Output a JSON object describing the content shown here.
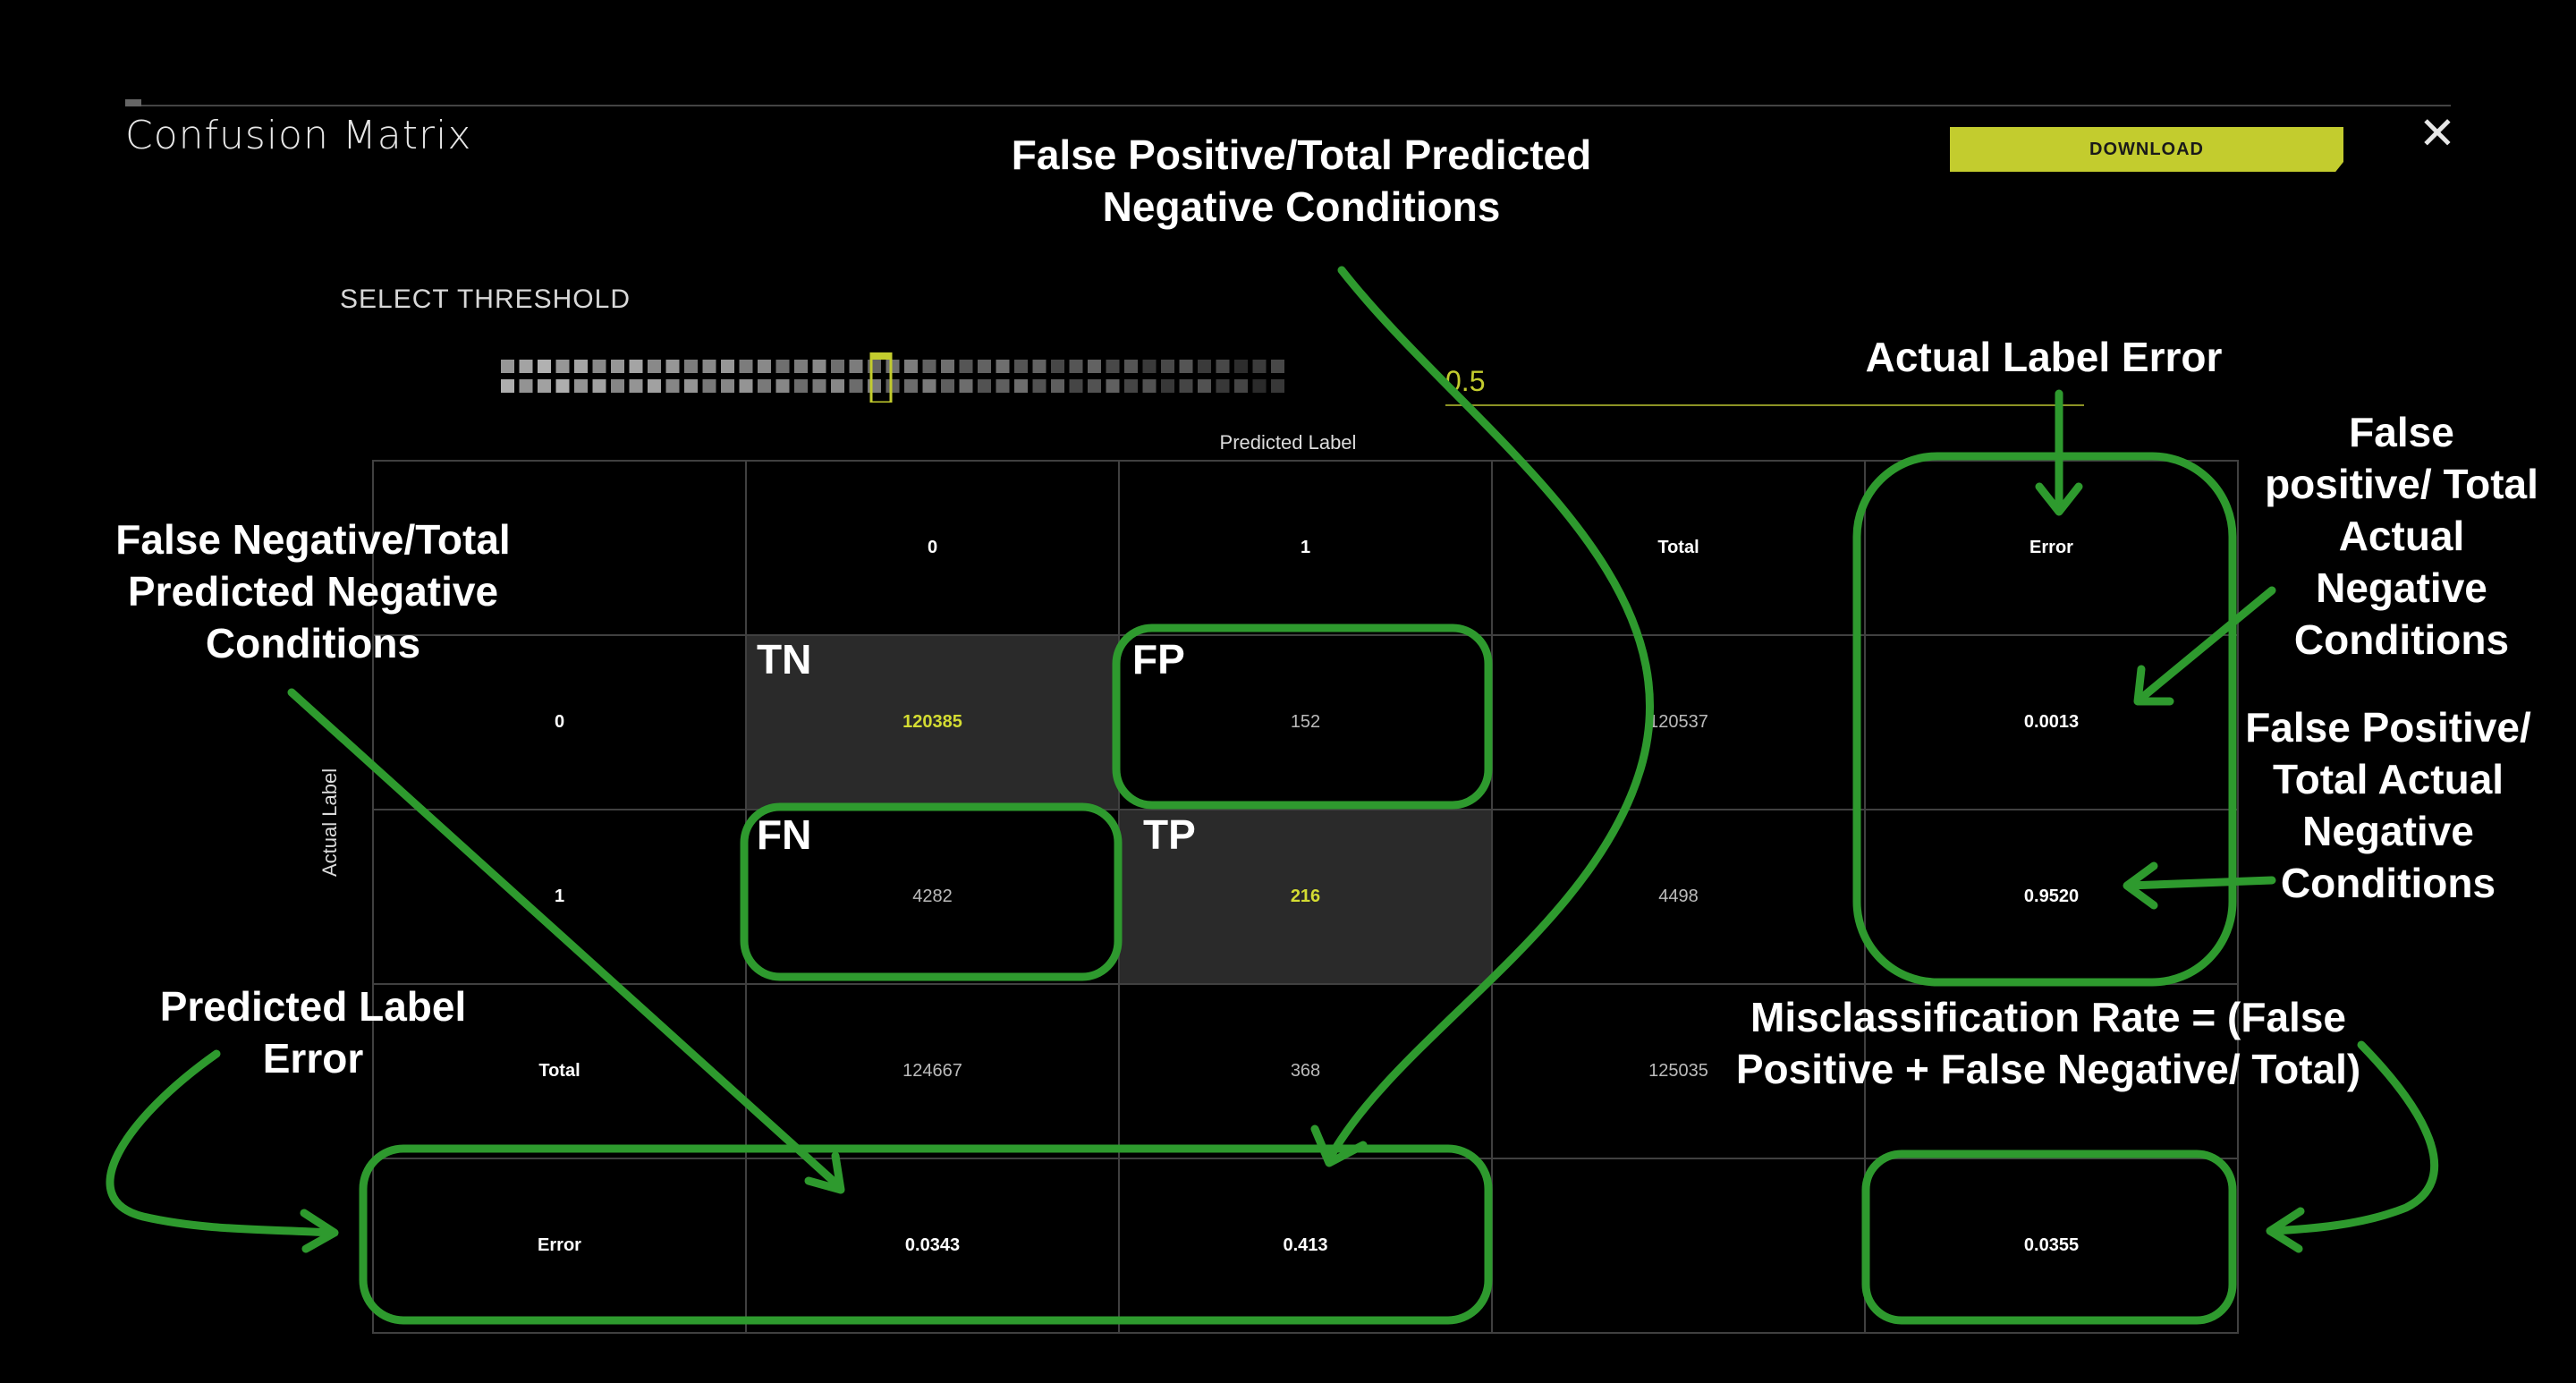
{
  "header": {
    "title": "Confusion Matrix",
    "download_label": "DOWNLOAD",
    "close_symbol": "✕"
  },
  "threshold": {
    "label": "SELECT THRESHOLD",
    "value": "0.5"
  },
  "matrix": {
    "predicted_axis_label": "Predicted Label",
    "actual_axis_label": "Actual Label",
    "header_row": [
      "",
      "0",
      "1",
      "Total",
      "Error"
    ],
    "rows": [
      [
        "0",
        "120385",
        "152",
        "120537",
        "0.0013"
      ],
      [
        "1",
        "4282",
        "216",
        "4498",
        "0.9520"
      ],
      [
        "Total",
        "124667",
        "368",
        "125035",
        ""
      ],
      [
        "Error",
        "0.0343",
        "0.413",
        "",
        "0.0355"
      ]
    ]
  },
  "cell_tags": {
    "tn": "TN",
    "fp": "FP",
    "fn": "FN",
    "tp": "TP"
  },
  "annotations": {
    "fp_total_pred_neg": "False Positive/Total Predicted Negative Conditions",
    "fn_total_pred_neg": "False Negative/Total Predicted Negative Conditions",
    "actual_label_error": "Actual Label Error",
    "fp_total_actual_neg_1": "False positive/ Total Actual Negative Conditions",
    "fp_total_actual_neg_2": "False Positive/ Total Actual Negative Conditions",
    "predicted_label_error": "Predicted Label Error",
    "misclassification_rate": "Misclassification Rate = (False Positive + False Negative/ Total)"
  },
  "colors": {
    "accent": "#c3cc2e",
    "annotation_green": "#2e9a2e",
    "highlight_value": "#d4dc32"
  }
}
